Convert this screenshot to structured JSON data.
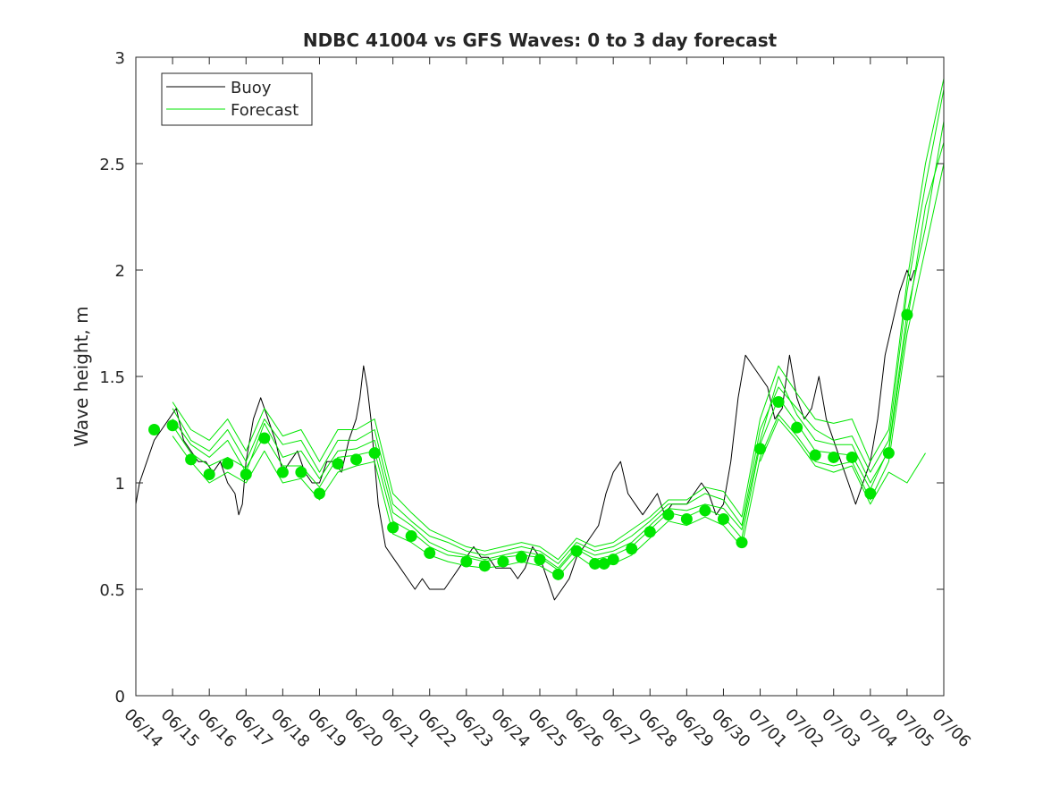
{
  "chart_data": {
    "type": "line",
    "title": "NDBC 41004 vs GFS Waves: 0 to 3 day forecast",
    "xlabel": "",
    "ylabel": "Wave height, m",
    "ylim": [
      0,
      3
    ],
    "yticks": [
      0,
      0.5,
      1,
      1.5,
      2,
      2.5,
      3
    ],
    "ytick_labels": [
      "0",
      "0.5",
      "1",
      "1.5",
      "2",
      "2.5",
      "3"
    ],
    "xlim": [
      0,
      22
    ],
    "xtick_labels": [
      "06/14",
      "06/15",
      "06/16",
      "06/17",
      "06/18",
      "06/19",
      "06/20",
      "06/21",
      "06/22",
      "06/23",
      "06/24",
      "06/25",
      "06/26",
      "06/27",
      "06/28",
      "06/29",
      "06/30",
      "07/01",
      "07/02",
      "07/03",
      "07/04",
      "07/05",
      "07/06"
    ],
    "grid": false,
    "legend_position": "top-left",
    "legend": [
      "Buoy",
      "Forecast"
    ],
    "colors": {
      "buoy": "#000000",
      "forecast": "#00e600",
      "axes": "#262626"
    },
    "buoy": {
      "x": [
        0,
        0.1,
        0.3,
        0.5,
        0.7,
        0.9,
        1.1,
        1.3,
        1.5,
        1.7,
        1.9,
        2.1,
        2.3,
        2.5,
        2.7,
        2.8,
        2.9,
        3.0,
        3.2,
        3.4,
        3.6,
        3.8,
        4.0,
        4.2,
        4.4,
        4.6,
        4.8,
        5.0,
        5.2,
        5.4,
        5.6,
        5.8,
        6.0,
        6.1,
        6.2,
        6.3,
        6.4,
        6.5,
        6.6,
        6.8,
        7.0,
        7.2,
        7.4,
        7.6,
        7.8,
        8.0,
        8.2,
        8.4,
        8.6,
        8.8,
        9.0,
        9.2,
        9.4,
        9.6,
        9.8,
        10.0,
        10.2,
        10.4,
        10.6,
        10.8,
        11.0,
        11.2,
        11.4,
        11.6,
        11.8,
        12.0,
        12.2,
        12.4,
        12.6,
        12.8,
        13.0,
        13.2,
        13.4,
        13.6,
        13.8,
        14.0,
        14.2,
        14.4,
        14.6,
        14.8,
        15.0,
        15.2,
        15.4,
        15.6,
        15.8,
        16.0,
        16.2,
        16.4,
        16.6,
        16.8,
        17.0,
        17.2,
        17.4,
        17.6,
        17.8,
        18.0,
        18.2,
        18.4,
        18.6,
        18.8,
        19.0,
        19.2,
        19.4,
        19.6,
        19.8,
        20.0,
        20.2,
        20.4,
        20.6,
        20.8,
        21.0,
        21.1,
        21.2
      ],
      "y": [
        0.9,
        1.0,
        1.1,
        1.2,
        1.25,
        1.3,
        1.35,
        1.2,
        1.15,
        1.1,
        1.1,
        1.05,
        1.1,
        1.0,
        0.95,
        0.85,
        0.9,
        1.1,
        1.3,
        1.4,
        1.3,
        1.2,
        1.05,
        1.1,
        1.15,
        1.05,
        1.0,
        1.0,
        1.1,
        1.1,
        1.05,
        1.2,
        1.3,
        1.4,
        1.55,
        1.45,
        1.3,
        1.1,
        0.9,
        0.7,
        0.65,
        0.6,
        0.55,
        0.5,
        0.55,
        0.5,
        0.5,
        0.5,
        0.55,
        0.6,
        0.65,
        0.7,
        0.65,
        0.65,
        0.6,
        0.6,
        0.6,
        0.55,
        0.6,
        0.7,
        0.65,
        0.55,
        0.45,
        0.5,
        0.55,
        0.65,
        0.7,
        0.75,
        0.8,
        0.95,
        1.05,
        1.1,
        0.95,
        0.9,
        0.85,
        0.9,
        0.95,
        0.85,
        0.9,
        0.9,
        0.9,
        0.95,
        1.0,
        0.95,
        0.85,
        0.9,
        1.1,
        1.4,
        1.6,
        1.55,
        1.5,
        1.45,
        1.3,
        1.35,
        1.6,
        1.4,
        1.3,
        1.35,
        1.5,
        1.3,
        1.2,
        1.1,
        1.0,
        0.9,
        1.0,
        1.1,
        1.3,
        1.6,
        1.75,
        1.9,
        2.0,
        1.95,
        2.0
      ]
    },
    "forecast_points": {
      "x": [
        0.5,
        1.0,
        1.5,
        2.0,
        2.5,
        3.0,
        3.5,
        4.0,
        4.5,
        5.0,
        5.5,
        6.0,
        6.5,
        7.0,
        7.5,
        8.0,
        9.0,
        9.5,
        10.0,
        10.5,
        11.0,
        11.5,
        12.0,
        12.5,
        12.75,
        13.0,
        13.5,
        14.0,
        14.5,
        15.0,
        15.5,
        16.0,
        16.5,
        17.0,
        17.5,
        18.0,
        18.5,
        19.0,
        19.5,
        20.0,
        20.5,
        21.0
      ],
      "y": [
        1.25,
        1.27,
        1.11,
        1.04,
        1.09,
        1.04,
        1.21,
        1.05,
        1.05,
        0.95,
        1.09,
        1.11,
        1.14,
        0.79,
        0.75,
        0.67,
        0.63,
        0.61,
        0.63,
        0.65,
        0.64,
        0.57,
        0.68,
        0.62,
        0.62,
        0.64,
        0.69,
        0.77,
        0.85,
        0.83,
        0.87,
        0.83,
        0.72,
        1.16,
        1.38,
        1.26,
        1.13,
        1.12,
        1.12,
        0.95,
        1.14,
        1.79
      ]
    },
    "forecast_runs": [
      {
        "x": [
          1.0,
          1.5,
          2.0,
          2.5,
          3.0,
          3.5,
          4.0,
          4.5,
          5.0,
          5.5,
          6.0,
          6.5,
          7.0,
          7.5,
          8.0,
          8.5,
          9.0,
          9.5,
          10.0,
          10.5,
          11.0,
          11.5,
          12.0,
          12.5,
          13.0,
          13.5,
          14.0,
          14.5,
          15.0,
          15.5,
          16.0,
          16.5,
          17.0,
          17.5,
          18.0,
          18.5,
          19.0,
          19.5,
          20.0,
          20.5,
          21.0,
          21.5,
          22.0
        ],
        "y": [
          1.27,
          1.14,
          1.08,
          1.12,
          1.07,
          1.22,
          1.08,
          1.08,
          0.98,
          1.12,
          1.13,
          1.15,
          0.82,
          0.77,
          0.7,
          0.66,
          0.65,
          0.63,
          0.65,
          0.66,
          0.65,
          0.59,
          0.69,
          0.64,
          0.66,
          0.7,
          0.78,
          0.86,
          0.84,
          0.88,
          0.84,
          0.74,
          1.18,
          1.4,
          1.28,
          1.15,
          1.14,
          1.13,
          0.97,
          1.16,
          1.8,
          2.2,
          2.7
        ]
      },
      {
        "x": [
          1.0,
          1.5,
          2.0,
          2.5,
          3.0,
          3.5,
          4.0,
          4.5,
          5.0,
          5.5,
          6.0,
          6.5,
          7.0,
          7.5,
          8.0,
          8.5,
          9.0,
          9.5,
          10.0,
          10.5,
          11.0,
          11.5,
          12.0,
          12.5,
          13.0,
          13.5,
          14.0,
          14.5,
          15.0,
          15.5,
          16.0,
          16.5,
          17.0,
          17.5,
          18.0,
          18.5,
          19.0,
          19.5,
          20.0,
          20.5,
          21.0,
          21.5,
          22.0
        ],
        "y": [
          1.35,
          1.2,
          1.15,
          1.25,
          1.1,
          1.3,
          1.18,
          1.2,
          1.05,
          1.2,
          1.2,
          1.25,
          0.9,
          0.82,
          0.75,
          0.72,
          0.68,
          0.66,
          0.68,
          0.7,
          0.68,
          0.62,
          0.72,
          0.68,
          0.7,
          0.75,
          0.82,
          0.9,
          0.9,
          0.95,
          0.92,
          0.8,
          1.25,
          1.45,
          1.35,
          1.25,
          1.2,
          1.22,
          1.05,
          1.2,
          1.9,
          2.4,
          2.85
        ]
      },
      {
        "x": [
          1.0,
          1.5,
          2.0,
          2.5,
          3.0,
          3.5,
          4.0,
          4.5,
          5.0,
          5.5,
          6.0,
          6.5,
          7.0,
          7.5,
          8.0,
          8.5,
          9.0,
          9.5,
          10.0,
          10.5,
          11.0,
          11.5,
          12.0,
          12.5,
          13.0,
          13.5,
          14.0,
          14.5,
          15.0,
          15.5,
          16.0,
          16.5,
          17.0,
          17.5,
          18.0,
          18.5,
          19.0,
          19.5,
          20.0,
          20.5,
          21.0,
          21.5,
          22.0
        ],
        "y": [
          1.22,
          1.1,
          1.0,
          1.05,
          1.0,
          1.15,
          1.0,
          1.02,
          0.92,
          1.05,
          1.08,
          1.1,
          0.76,
          0.72,
          0.66,
          0.63,
          0.61,
          0.6,
          0.61,
          0.63,
          0.61,
          0.56,
          0.66,
          0.6,
          0.62,
          0.66,
          0.74,
          0.82,
          0.8,
          0.84,
          0.8,
          0.7,
          1.12,
          1.32,
          1.22,
          1.1,
          1.08,
          1.1,
          0.92,
          1.1,
          1.7,
          2.1,
          2.5
        ]
      },
      {
        "x": [
          1.0,
          1.5,
          2.0,
          2.5,
          3.0,
          3.5,
          4.0,
          4.5,
          5.0,
          5.5,
          6.0,
          6.5,
          7.0,
          7.5,
          8.0,
          8.5,
          9.0,
          9.5,
          10.0,
          10.5,
          11.0,
          11.5,
          12.0,
          12.5,
          13.0,
          13.5,
          14.0,
          14.5,
          15.0,
          15.5,
          16.0,
          16.5,
          17.0,
          17.5,
          18.0,
          18.5,
          19.0,
          19.5,
          20.0,
          20.5,
          21.0,
          21.5,
          22.0
        ],
        "y": [
          1.3,
          1.18,
          1.12,
          1.2,
          1.05,
          1.28,
          1.12,
          1.15,
          1.02,
          1.15,
          1.16,
          1.2,
          0.86,
          0.8,
          0.72,
          0.68,
          0.66,
          0.64,
          0.66,
          0.68,
          0.66,
          0.6,
          0.7,
          0.66,
          0.68,
          0.72,
          0.8,
          0.88,
          0.87,
          0.9,
          0.88,
          0.78,
          1.2,
          1.5,
          1.32,
          1.2,
          1.18,
          1.18,
          1.0,
          1.15,
          1.75,
          2.3,
          2.6
        ]
      },
      {
        "x": [
          1.0,
          1.5,
          2.0,
          2.5,
          3.0,
          3.5,
          4.0,
          4.5,
          5.0,
          5.5,
          6.0,
          6.5,
          7.0,
          7.5,
          8.0,
          8.5,
          9.0,
          9.5,
          10.0,
          10.5,
          11.0,
          11.5,
          12.0,
          12.5,
          13.0,
          13.5,
          14.0,
          14.5,
          15.0,
          15.5,
          16.0,
          16.5,
          17.0,
          17.5,
          18.0,
          18.5,
          19.0,
          19.5,
          20.0,
          20.5,
          21.0,
          21.5,
          22.0
        ],
        "y": [
          1.38,
          1.25,
          1.2,
          1.3,
          1.15,
          1.35,
          1.22,
          1.25,
          1.1,
          1.25,
          1.25,
          1.3,
          0.95,
          0.86,
          0.78,
          0.74,
          0.7,
          0.68,
          0.7,
          0.72,
          0.7,
          0.64,
          0.74,
          0.7,
          0.72,
          0.78,
          0.84,
          0.92,
          0.92,
          0.98,
          0.96,
          0.84,
          1.3,
          1.55,
          1.42,
          1.3,
          1.28,
          1.3,
          1.1,
          1.25,
          1.95,
          2.5,
          2.9
        ]
      },
      {
        "x": [
          17.0,
          17.5,
          18.0,
          18.5,
          19.0,
          19.5,
          20.0,
          20.5,
          21.0,
          21.5
        ],
        "y": [
          1.1,
          1.3,
          1.2,
          1.08,
          1.05,
          1.08,
          0.9,
          1.05,
          1.0,
          1.14
        ]
      }
    ]
  }
}
